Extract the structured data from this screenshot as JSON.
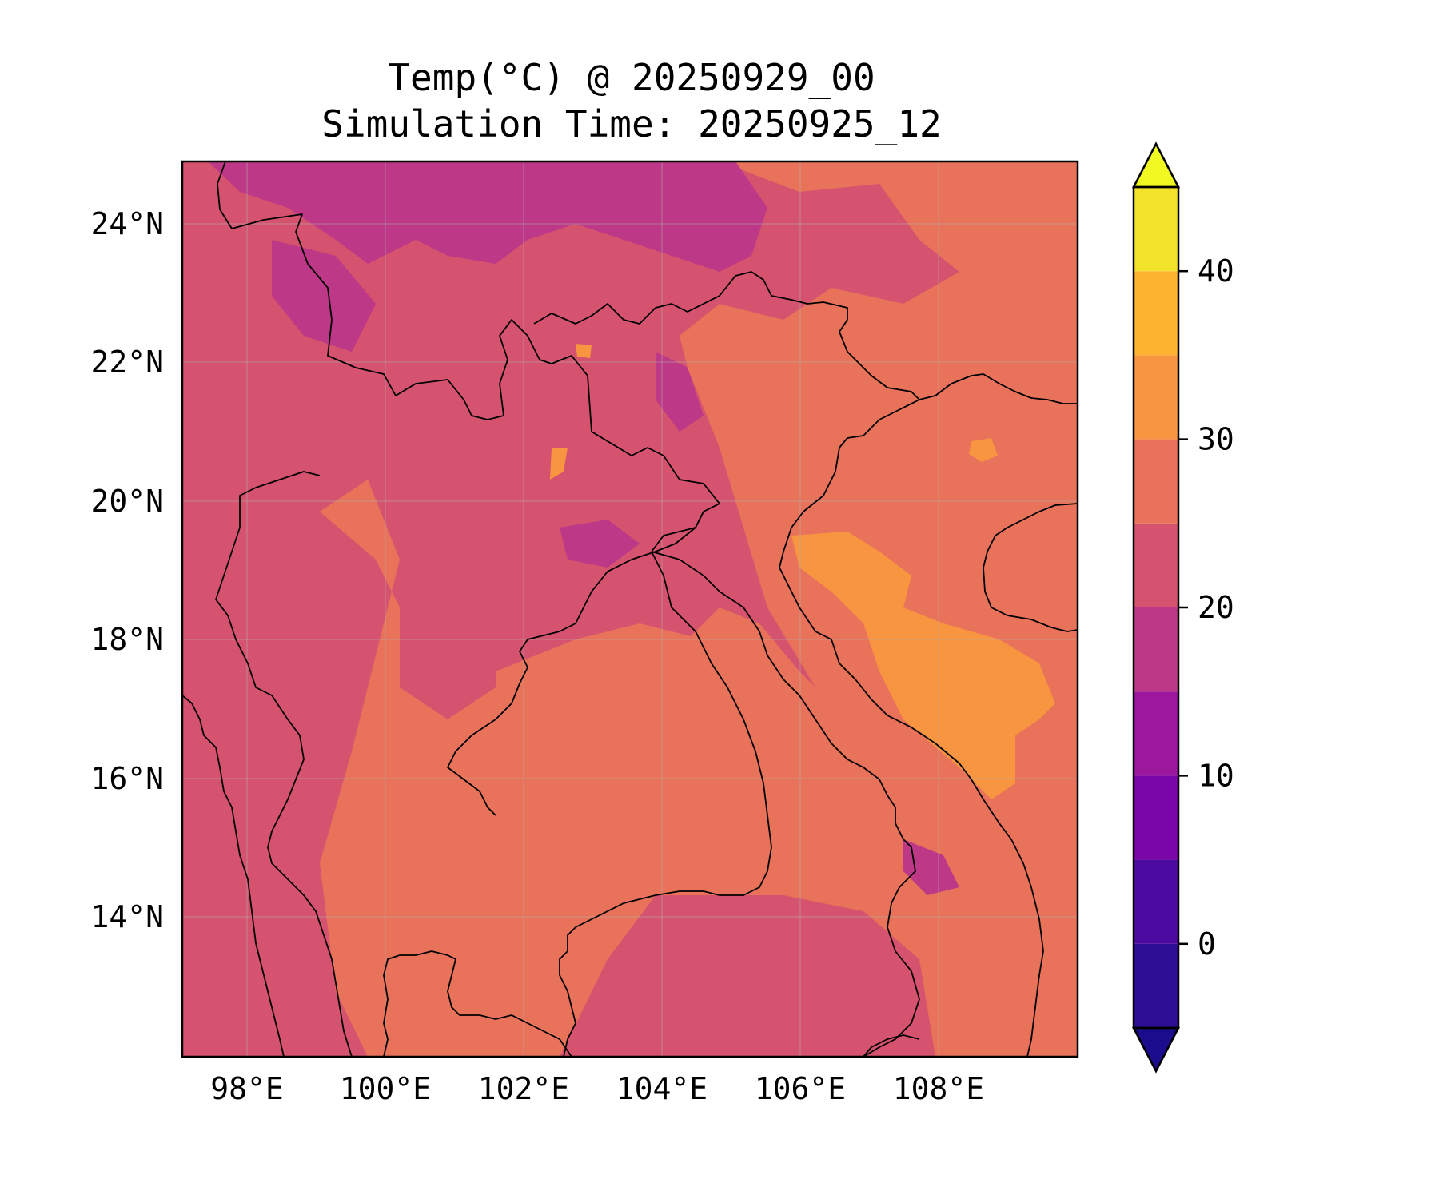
{
  "map": {
    "title": "Temp(°C) @ 20250929_00",
    "subtitle": "Simulation Time: 20250925_12",
    "lon_labels": [
      "98°E",
      "100°E",
      "102°E",
      "104°E",
      "106°E",
      "108°E"
    ],
    "lat_labels": [
      "24°N",
      "22°N",
      "20°N",
      "18°N",
      "16°N",
      "14°N"
    ],
    "lon_range": [
      97.05,
      110.0
    ],
    "lat_range": [
      12.05,
      24.95
    ],
    "colors": {
      "background_field": "#e9735a",
      "warm_band_25_30": "#e9735a",
      "band_20_25": "#d5536f",
      "band_15_20": "#bd3886",
      "band_30_35": "#f79540"
    }
  },
  "colorbar": {
    "tick_labels": [
      "40",
      "30",
      "20",
      "10",
      "0"
    ],
    "tick_values": [
      40,
      30,
      20,
      10,
      0
    ],
    "range": [
      -5,
      45
    ],
    "step": 5,
    "extend": "both",
    "colors": [
      "#1b0c8e",
      "#2b0e93",
      "#4d0aa0",
      "#7a06a8",
      "#9c179e",
      "#bd3886",
      "#d5536f",
      "#e9735a",
      "#f79540",
      "#fdb32f",
      "#f3e22a",
      "#f0f921"
    ]
  }
}
